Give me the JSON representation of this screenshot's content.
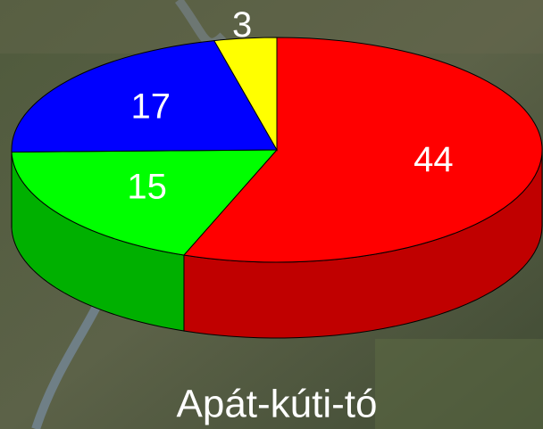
{
  "chart_data": {
    "type": "pie",
    "title": "Apát-kúti-tó",
    "values": [
      44,
      15,
      17,
      3
    ],
    "colors": [
      "#ff0000",
      "#00ff00",
      "#0000ff",
      "#ffff00"
    ],
    "side_colors": [
      "#c00000",
      "#00b000",
      "#0000b0",
      "#b0b000"
    ]
  }
}
